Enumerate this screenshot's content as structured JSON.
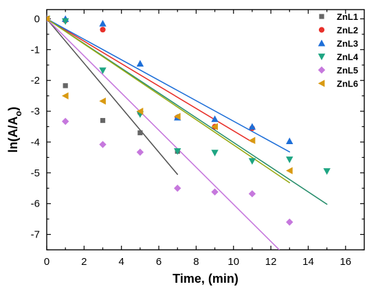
{
  "chart_data": {
    "type": "scatter",
    "xlabel": "Time, (min)",
    "ylabel_main": "ln(A/A",
    "ylabel_sub": "o",
    "ylabel_end": ")",
    "xlim": [
      0,
      17
    ],
    "ylim": [
      -7.5,
      0.3
    ],
    "xticks": [
      0,
      2,
      4,
      6,
      8,
      10,
      12,
      14,
      16
    ],
    "yticks": [
      0,
      -1,
      -2,
      -3,
      -4,
      -5,
      -6,
      -7
    ],
    "grid": false,
    "legend_position": "top-right",
    "series": [
      {
        "name": "ZnL1",
        "marker": "square",
        "color": "#666666",
        "line_color": "#555555",
        "points": [
          [
            0,
            0
          ],
          [
            1,
            -2.17
          ],
          [
            3,
            -3.3
          ],
          [
            5,
            -3.7
          ],
          [
            7,
            -4.3
          ]
        ],
        "fit": [
          [
            0,
            0
          ],
          [
            7,
            -5.05
          ]
        ]
      },
      {
        "name": "ZnL2",
        "marker": "circle",
        "color": "#e8302a",
        "line_color": "#e8302a",
        "points": [
          [
            0,
            0
          ],
          [
            1,
            -0.05
          ],
          [
            3,
            -0.35
          ],
          [
            5,
            -3.05
          ],
          [
            7,
            -3.2
          ],
          [
            9,
            -3.5
          ],
          [
            11,
            -3.55
          ]
        ],
        "fit": [
          [
            0,
            0
          ],
          [
            11,
            -4.0
          ]
        ]
      },
      {
        "name": "ZnL3",
        "marker": "triangle-up",
        "color": "#1e6fd8",
        "line_color": "#1e6fd8",
        "points": [
          [
            0,
            0
          ],
          [
            1,
            0.0
          ],
          [
            3,
            -0.15
          ],
          [
            5,
            -1.45
          ],
          [
            7,
            -3.2
          ],
          [
            9,
            -3.25
          ],
          [
            11,
            -3.5
          ],
          [
            13,
            -3.97
          ]
        ],
        "fit": [
          [
            0,
            0
          ],
          [
            13,
            -4.32
          ]
        ]
      },
      {
        "name": "ZnL4",
        "marker": "triangle-down",
        "color": "#1ea582",
        "line_color": "#2a8f6e",
        "points": [
          [
            0,
            0
          ],
          [
            1,
            -0.08
          ],
          [
            3,
            -1.68
          ],
          [
            5,
            -3.1
          ],
          [
            7,
            -4.3
          ],
          [
            9,
            -4.35
          ],
          [
            11,
            -4.62
          ],
          [
            13,
            -4.57
          ],
          [
            15,
            -4.95
          ]
        ],
        "fit": [
          [
            0,
            0
          ],
          [
            15,
            -6.02
          ]
        ]
      },
      {
        "name": "ZnL5",
        "marker": "diamond",
        "color": "#c678dd",
        "line_color": "#c678dd",
        "points": [
          [
            0,
            0
          ],
          [
            1,
            -3.33
          ],
          [
            3,
            -4.08
          ],
          [
            5,
            -4.33
          ],
          [
            7,
            -5.5
          ],
          [
            9,
            -5.62
          ],
          [
            11,
            -5.68
          ],
          [
            13,
            -6.6
          ]
        ],
        "fit": [
          [
            0,
            0
          ],
          [
            12.45,
            -7.5
          ]
        ]
      },
      {
        "name": "ZnL6",
        "marker": "triangle-left",
        "color": "#d99a12",
        "line_color": "#9aab18",
        "points": [
          [
            0,
            0
          ],
          [
            1,
            -2.5
          ],
          [
            3,
            -2.67
          ],
          [
            5,
            -3.0
          ],
          [
            7,
            -3.17
          ],
          [
            9,
            -3.5
          ],
          [
            11,
            -3.95
          ],
          [
            13,
            -4.93
          ]
        ],
        "fit": [
          [
            0,
            0
          ],
          [
            13,
            -5.32
          ]
        ]
      }
    ]
  }
}
